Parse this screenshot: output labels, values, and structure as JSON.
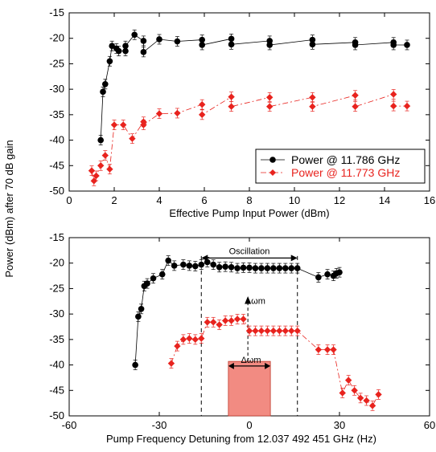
{
  "shared_ylabel": "Power (dBm) after 70 dB gain",
  "colors": {
    "black_series": "#000000",
    "red_series": "#e8231e",
    "box_fill": "#f28b82"
  },
  "chart_data": [
    {
      "type": "scatter",
      "xlabel": "Effective Pump Input Power (dBm)",
      "ylabel": "Power (dBm) after 70 dB gain",
      "xlim": [
        0,
        16
      ],
      "ylim": [
        -50,
        -15
      ],
      "xticks": [
        "0",
        "2",
        "4",
        "6",
        "8",
        "10",
        "12",
        "14",
        "16"
      ],
      "yticks": [
        "-15",
        "-20",
        "-25",
        "-30",
        "-35",
        "-40",
        "-45",
        "-50"
      ],
      "legend_position": "lower-right",
      "series": [
        {
          "name": "Power @ 11.786 GHz",
          "color": "#000000",
          "marker": "circle",
          "points": [
            [
              1.4,
              -40
            ],
            [
              1.5,
              -30.5
            ],
            [
              1.6,
              -29
            ],
            [
              1.8,
              -24.5
            ],
            [
              1.9,
              -21.5
            ],
            [
              2.1,
              -22
            ],
            [
              2.2,
              -22.5
            ],
            [
              2.5,
              -22.5
            ],
            [
              2.5,
              -21.5
            ],
            [
              2.9,
              -19.3
            ],
            [
              3.3,
              -20.5
            ],
            [
              3.3,
              -22.7
            ],
            [
              4.0,
              -20.2
            ],
            [
              4.8,
              -20.6
            ],
            [
              5.9,
              -20.3
            ],
            [
              5.9,
              -21.3
            ],
            [
              7.2,
              -20.1
            ],
            [
              7.2,
              -21.2
            ],
            [
              8.9,
              -20.5
            ],
            [
              8.9,
              -21.3
            ],
            [
              10.8,
              -20.3
            ],
            [
              10.8,
              -21.2
            ],
            [
              12.7,
              -20.8
            ],
            [
              12.7,
              -21.3
            ],
            [
              14.4,
              -20.8
            ],
            [
              14.4,
              -21.3
            ],
            [
              15.0,
              -21.3
            ]
          ]
        },
        {
          "name": "Power @ 11.773 GHz",
          "color": "#e8231e",
          "marker": "diamond",
          "points": [
            [
              1.0,
              -46
            ],
            [
              1.1,
              -48
            ],
            [
              1.2,
              -47
            ],
            [
              1.4,
              -45
            ],
            [
              1.6,
              -43
            ],
            [
              1.8,
              -45.7
            ],
            [
              2.0,
              -37
            ],
            [
              2.4,
              -37
            ],
            [
              2.8,
              -39.7
            ],
            [
              3.3,
              -36.4
            ],
            [
              3.3,
              -37
            ],
            [
              4.0,
              -34.8
            ],
            [
              4.8,
              -34.7
            ],
            [
              5.9,
              -33
            ],
            [
              5.9,
              -35
            ],
            [
              7.2,
              -31.5
            ],
            [
              7.2,
              -33.4
            ],
            [
              8.9,
              -31.6
            ],
            [
              8.9,
              -33.4
            ],
            [
              10.8,
              -31.6
            ],
            [
              10.8,
              -33.4
            ],
            [
              12.7,
              -31.2
            ],
            [
              12.7,
              -33.4
            ],
            [
              14.4,
              -31
            ],
            [
              14.4,
              -33.3
            ],
            [
              15.0,
              -33.3
            ]
          ]
        }
      ]
    },
    {
      "type": "scatter",
      "xlabel": "Pump Frequency Detuning from 12.037 492 451 GHz (Hz)",
      "ylabel": "Power (dBm) after 70 dB gain",
      "xlim": [
        -60,
        60
      ],
      "ylim": [
        -50,
        -15
      ],
      "xticks": [
        "-60",
        "-30",
        "0",
        "30",
        "60"
      ],
      "yticks": [
        "-15",
        "-20",
        "-25",
        "-30",
        "-35",
        "-40",
        "-45",
        "-50"
      ],
      "annotations": [
        "Oscillation",
        "ωm",
        "Δωm"
      ],
      "oscillation_range": [
        -16,
        16
      ],
      "omega_m_arrow_x": -0.5,
      "delta_omega_box": {
        "x_range": [
          -7,
          7
        ],
        "y_range": [
          -50,
          -39.3
        ]
      },
      "series": [
        {
          "color": "#000000",
          "marker": "circle",
          "points": [
            [
              -38,
              -40
            ],
            [
              -37,
              -30.5
            ],
            [
              -36,
              -29
            ],
            [
              -35,
              -24.5
            ],
            [
              -34,
              -24
            ],
            [
              -32,
              -23
            ],
            [
              -29,
              -22.2
            ],
            [
              -27,
              -19.5
            ],
            [
              -25,
              -20.5
            ],
            [
              -22,
              -20.3
            ],
            [
              -20,
              -20.5
            ],
            [
              -18,
              -20.6
            ],
            [
              -16,
              -20.3
            ],
            [
              -14,
              -19.8
            ],
            [
              -12,
              -20.3
            ],
            [
              -10,
              -20.8
            ],
            [
              -8,
              -20.7
            ],
            [
              -6,
              -20.8
            ],
            [
              -4,
              -21
            ],
            [
              -2,
              -20.9
            ],
            [
              0,
              -20.9
            ],
            [
              2,
              -21
            ],
            [
              4,
              -21
            ],
            [
              6,
              -21
            ],
            [
              8,
              -21
            ],
            [
              10,
              -21
            ],
            [
              12,
              -21
            ],
            [
              14,
              -21
            ],
            [
              16,
              -21
            ],
            [
              23,
              -22.8
            ],
            [
              26,
              -22.2
            ],
            [
              28,
              -22.5
            ],
            [
              29,
              -22
            ],
            [
              30,
              -21.8
            ]
          ]
        },
        {
          "color": "#e8231e",
          "marker": "diamond",
          "points": [
            [
              -26,
              -39.7
            ],
            [
              -24,
              -36.3
            ],
            [
              -22,
              -35
            ],
            [
              -20,
              -34.8
            ],
            [
              -18,
              -35
            ],
            [
              -16,
              -34.8
            ],
            [
              -14,
              -31.6
            ],
            [
              -12,
              -31.6
            ],
            [
              -10,
              -32.1
            ],
            [
              -8,
              -31.3
            ],
            [
              -6,
              -31.3
            ],
            [
              -4,
              -31
            ],
            [
              -2,
              -31
            ],
            [
              0,
              -33.3
            ],
            [
              2,
              -33.3
            ],
            [
              4,
              -33.3
            ],
            [
              6,
              -33.3
            ],
            [
              8,
              -33.3
            ],
            [
              10,
              -33.3
            ],
            [
              12,
              -33.3
            ],
            [
              14,
              -33.3
            ],
            [
              16,
              -33.3
            ],
            [
              23,
              -37
            ],
            [
              26,
              -37
            ],
            [
              28,
              -37
            ],
            [
              31,
              -45.5
            ],
            [
              33,
              -43
            ],
            [
              35,
              -45
            ],
            [
              37,
              -46.5
            ],
            [
              39,
              -47
            ],
            [
              41,
              -48
            ],
            [
              43,
              -45.8
            ]
          ]
        }
      ]
    }
  ]
}
